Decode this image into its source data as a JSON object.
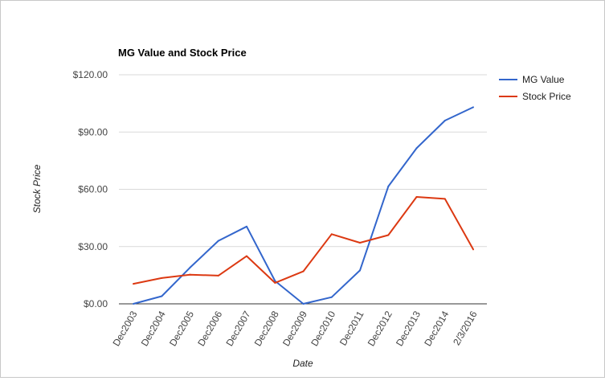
{
  "chart_data": {
    "type": "line",
    "title": "MG Value and Stock Price",
    "xlabel": "Date",
    "ylabel": "Stock Price",
    "categories": [
      "Dec2003",
      "Dec2004",
      "Dec2005",
      "Dec2006",
      "Dec2007",
      "Dec2008",
      "Dec2009",
      "Dec2010",
      "Dec2011",
      "Dec2012",
      "Dec2013",
      "Dec2014",
      "2/3/2016"
    ],
    "ylim": [
      0,
      120
    ],
    "yticks": [
      0,
      30,
      60,
      90,
      120
    ],
    "ytick_labels": [
      "$0.00",
      "$30.00",
      "$60.00",
      "$90.00",
      "$120.00"
    ],
    "grid": true,
    "legend_position": "right",
    "series": [
      {
        "name": "MG Value",
        "color": "#3366cc",
        "values": [
          0.0,
          4.0,
          19.0,
          33.0,
          40.5,
          12.0,
          0.0,
          3.5,
          17.5,
          61.5,
          81.5,
          96.0,
          103.0
        ]
      },
      {
        "name": "Stock Price",
        "color": "#dc3912",
        "values": [
          10.5,
          13.5,
          15.3,
          14.8,
          25.0,
          11.0,
          17.0,
          36.5,
          32.0,
          36.0,
          56.0,
          55.0,
          28.5
        ]
      }
    ]
  }
}
